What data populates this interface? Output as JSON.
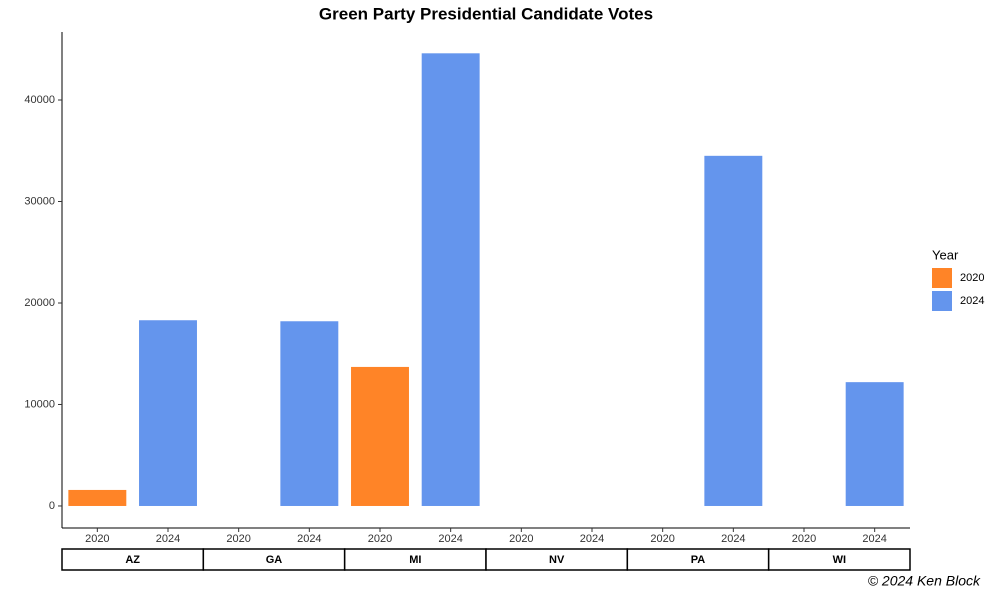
{
  "chart_data": {
    "type": "bar",
    "title": "Green Party Presidential Candidate Votes",
    "categories": [
      "AZ",
      "GA",
      "MI",
      "NV",
      "PA",
      "WI"
    ],
    "series": [
      {
        "name": "2020",
        "color": "#ff8427",
        "values": [
          1580,
          null,
          13700,
          null,
          null,
          null
        ]
      },
      {
        "name": "2024",
        "color": "#6495ed",
        "values": [
          18300,
          18200,
          44600,
          null,
          34500,
          12200
        ]
      }
    ],
    "legend_title": "Year",
    "legend_position": "right",
    "ylim": [
      -2170,
      46700
    ],
    "yticks": [
      0,
      10000,
      20000,
      30000,
      40000
    ],
    "grid": false,
    "caption": "© 2024 Ken Block"
  }
}
